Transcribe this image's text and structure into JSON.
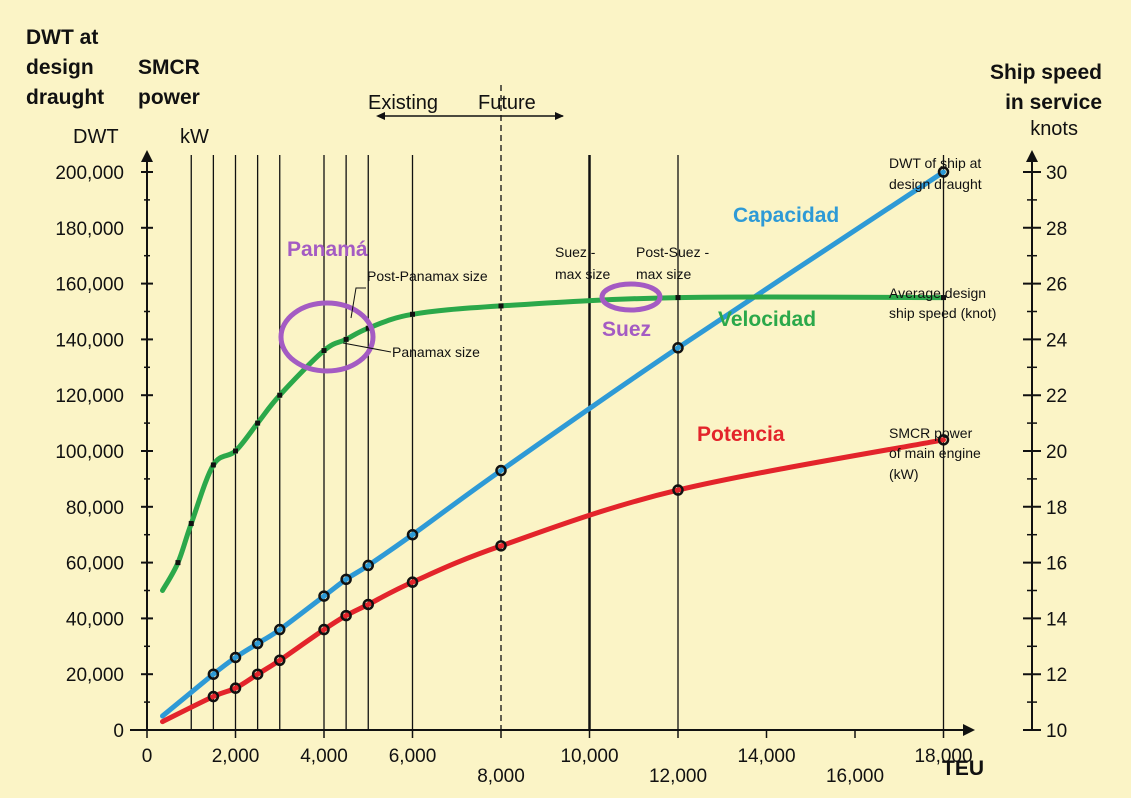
{
  "chart_data": {
    "type": "line",
    "background_color": "#FBF4C6",
    "left_axis_title": [
      "DWT at",
      "design",
      "draught"
    ],
    "left_axis_unit": "DWT",
    "power_axis_title": [
      "SMCR",
      "power"
    ],
    "power_axis_unit": "kW",
    "right_axis_title": [
      "Ship speed",
      "in service"
    ],
    "right_axis_unit": "knots",
    "x_axis_label": "TEU",
    "ylim": [
      0,
      200000
    ],
    "y_ticks": [
      "0",
      "20,000",
      "40,000",
      "60,000",
      "80,000",
      "100,000",
      "120,000",
      "140,000",
      "160,000",
      "180,000",
      "200,000"
    ],
    "y_tick_values": [
      0,
      20000,
      40000,
      60000,
      80000,
      100000,
      120000,
      140000,
      160000,
      180000,
      200000
    ],
    "speed_ylim": [
      10,
      30
    ],
    "right_ticks": [
      "10",
      "12",
      "14",
      "16",
      "18",
      "20",
      "22",
      "24",
      "26",
      "28",
      "30"
    ],
    "right_tick_values": [
      10,
      12,
      14,
      16,
      18,
      20,
      22,
      24,
      26,
      28,
      30
    ],
    "x_ticks_teu": [
      {
        "label": "0",
        "value": 0
      },
      {
        "label": "2,000",
        "value": 2000
      },
      {
        "label": "4,000",
        "value": 4000
      },
      {
        "label": "6,000",
        "value": 6000
      },
      {
        "label": "8,000",
        "value": 8000
      },
      {
        "label": "10,000",
        "value": 10000
      },
      {
        "label": "12,000",
        "value": 12000
      },
      {
        "label": "14,000",
        "value": 14000
      },
      {
        "label": "16,000",
        "value": 16000
      },
      {
        "label": "18,000",
        "value": 18000
      }
    ],
    "vertical_lines_teu": [
      1000,
      1500,
      2000,
      2500,
      3000,
      4000,
      4500,
      5000,
      6000,
      10000,
      12000,
      18000
    ],
    "dashed_line_teu": 8000,
    "xlim": [
      0,
      20000
    ],
    "series": [
      {
        "name": "Capacidad",
        "color": "#2E9AD6",
        "axis": "left",
        "x": [
          350,
          1500,
          2000,
          2500,
          3000,
          4000,
          4500,
          5000,
          6000,
          8000,
          12000,
          18000
        ],
        "values": [
          5000,
          20000,
          26000,
          31000,
          36000,
          48000,
          54000,
          59000,
          70000,
          93000,
          137000,
          200000
        ]
      },
      {
        "name": "Potencia",
        "color": "#E3242B",
        "axis": "left",
        "x": [
          350,
          1500,
          2000,
          2500,
          3000,
          4000,
          4500,
          5000,
          6000,
          8000,
          12000,
          18000
        ],
        "values": [
          3000,
          12000,
          15000,
          20000,
          25000,
          36000,
          41000,
          45000,
          53000,
          66000,
          86000,
          104000
        ]
      },
      {
        "name": "Velocidad",
        "color": "#2BA84A",
        "axis": "right",
        "x": [
          350,
          700,
          1000,
          1500,
          2000,
          2500,
          3000,
          4000,
          4500,
          5000,
          6000,
          8000,
          12000,
          18000
        ],
        "values": [
          15.0,
          16.0,
          17.4,
          19.5,
          20.0,
          21.0,
          22.0,
          23.6,
          24.0,
          24.4,
          24.9,
          25.2,
          25.5,
          25.5
        ]
      }
    ],
    "annotations": {
      "existing": "Existing",
      "future": "Future",
      "panama": "Panamá",
      "suez": "Suez",
      "post_panamax": "Post-Panamax size",
      "panamax": "Panamax size",
      "suezmax": [
        "Suez -",
        "max size"
      ],
      "post_suezmax": [
        "Post-Suez -",
        "max size"
      ],
      "dwt_note": [
        "DWT of ship at",
        "design draught"
      ],
      "speed_note": [
        "Average design",
        "ship speed (knot)"
      ],
      "power_note": [
        "SMCR power",
        "of main engine",
        "(kW)"
      ],
      "highlight_color": "#A45BC3"
    }
  }
}
